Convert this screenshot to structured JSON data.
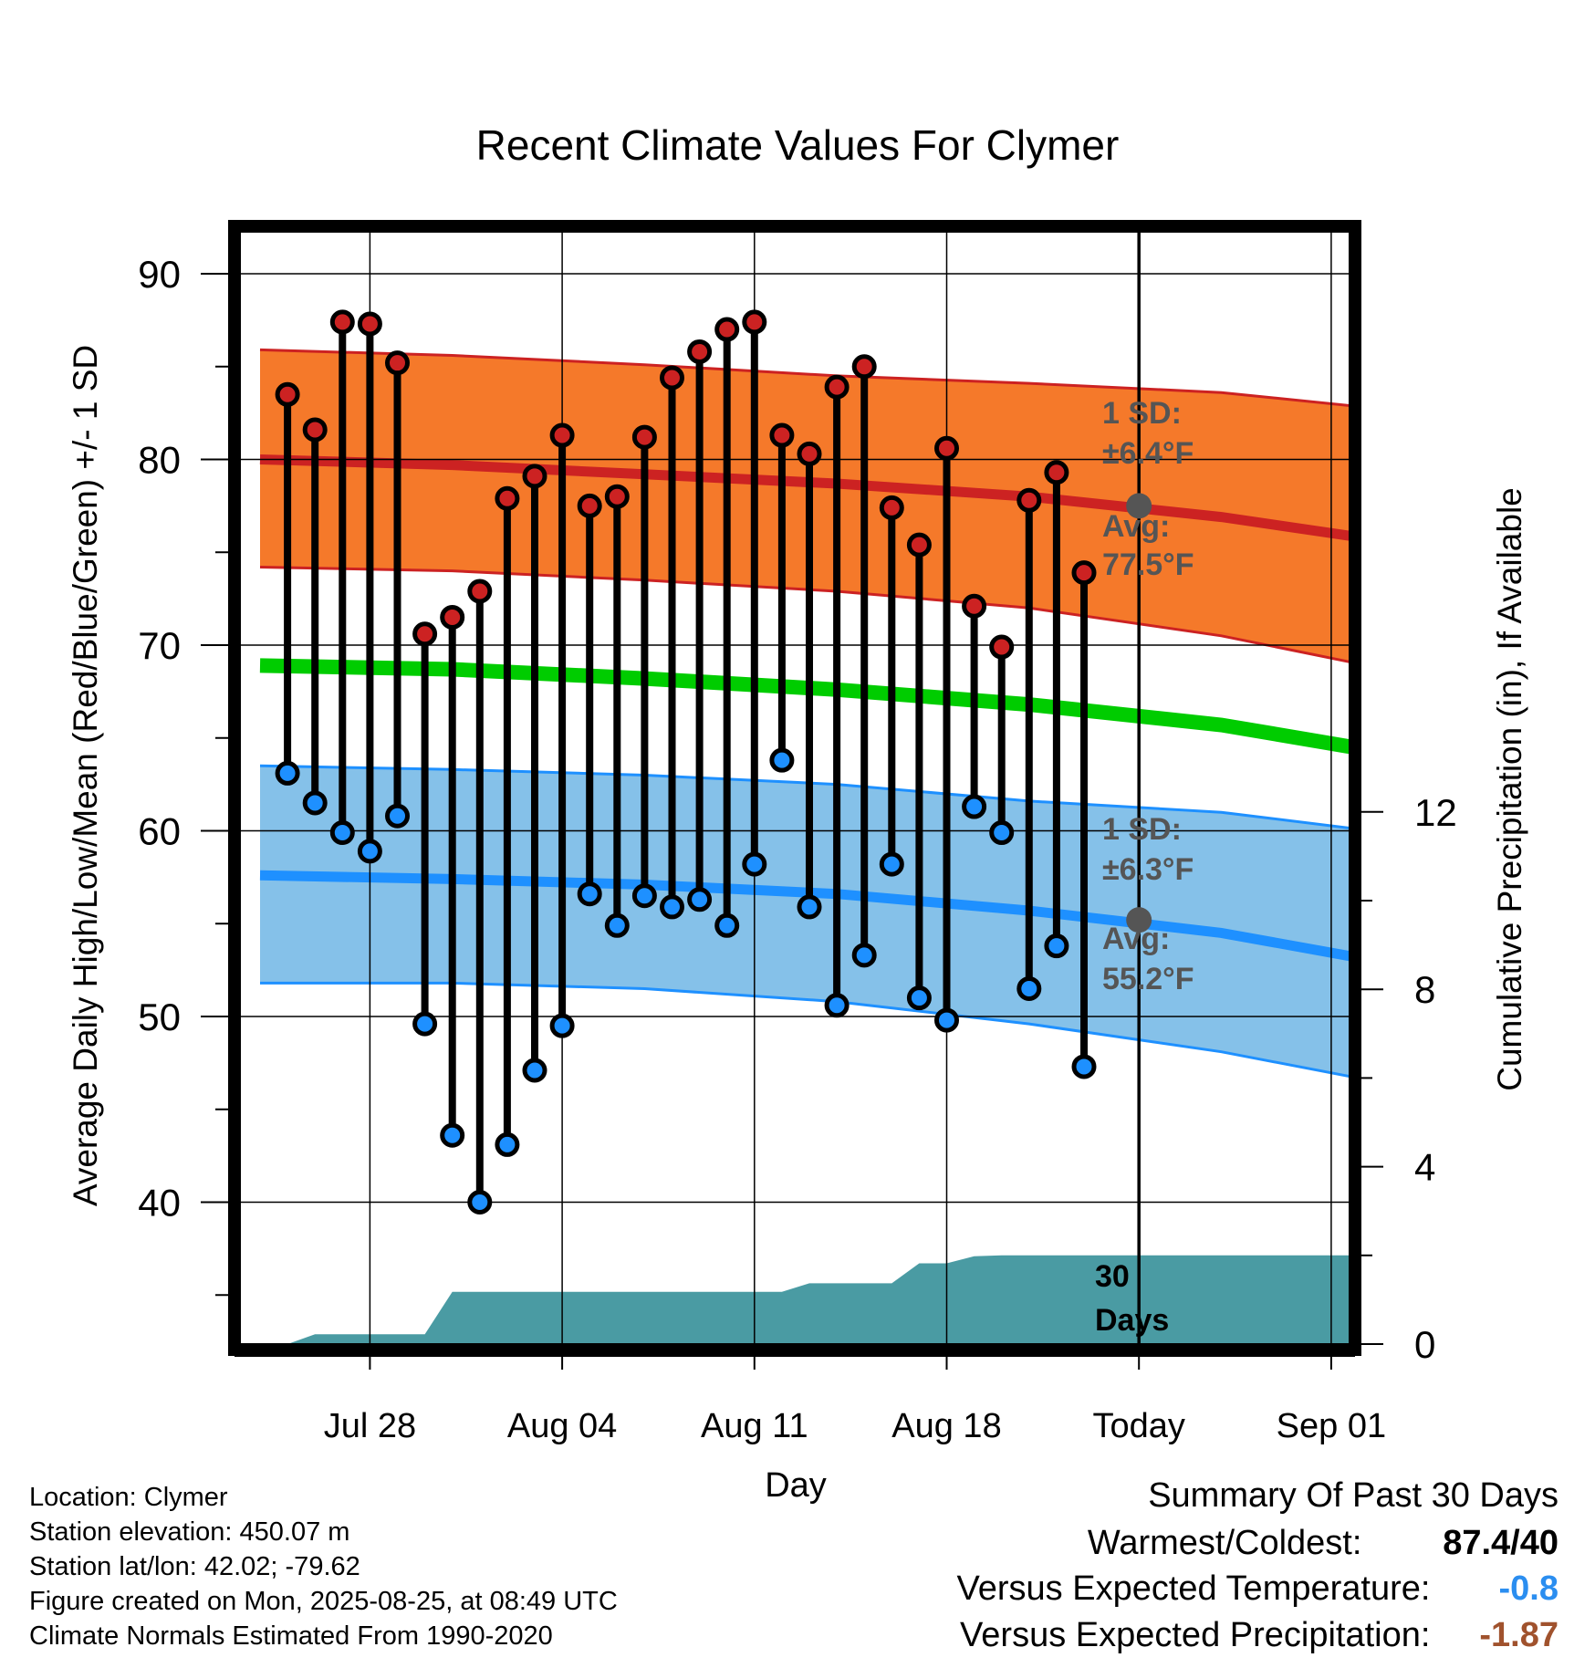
{
  "chart_data": {
    "type": "line",
    "title": "Recent Climate Values For Clymer",
    "xlabel": "Day",
    "ylabel": "Average Daily High/Low/Mean (Red/Blue/Green) +/- 1 SD",
    "y2label": "Cumulative Precipitation (in), If Available",
    "ylim": [
      33,
      93
    ],
    "y2lim": [
      0,
      18
    ],
    "yticks": [
      40,
      50,
      60,
      70,
      80,
      90
    ],
    "y2ticks": [
      0,
      4,
      8,
      12
    ],
    "xlim": [
      "2025-07-24",
      "2025-09-03"
    ],
    "xticks": [
      {
        "date": "2025-07-28",
        "label": "Jul 28"
      },
      {
        "date": "2025-08-04",
        "label": "Aug 04"
      },
      {
        "date": "2025-08-11",
        "label": "Aug 11"
      },
      {
        "date": "2025-08-18",
        "label": "Aug 18"
      },
      {
        "date": "2025-08-25",
        "label": "Today"
      },
      {
        "date": "2025-09-01",
        "label": "Sep 01"
      }
    ],
    "today": "2025-08-25",
    "grid": true,
    "colors": {
      "high": "#cc2222",
      "high_band": "#f5792a",
      "low": "#1e90ff",
      "low_band": "#85c1e9",
      "mean": "#00cc00",
      "precip": "#4a9ba3",
      "avg_marker": "#555555"
    },
    "normals": {
      "x": [
        "2025-07-24",
        "2025-07-31",
        "2025-08-07",
        "2025-08-14",
        "2025-08-21",
        "2025-08-28",
        "2025-09-03"
      ],
      "high_avg": [
        80.0,
        79.7,
        79.2,
        78.7,
        78.0,
        76.9,
        75.6
      ],
      "high_upper": [
        85.9,
        85.6,
        85.1,
        84.5,
        84.1,
        83.6,
        82.7
      ],
      "high_lower": [
        74.2,
        74.0,
        73.5,
        72.9,
        72.0,
        70.5,
        68.7
      ],
      "mean_avg": [
        68.9,
        68.7,
        68.2,
        67.6,
        66.8,
        65.7,
        64.2
      ],
      "low_avg": [
        57.6,
        57.4,
        57.1,
        56.6,
        55.7,
        54.5,
        52.9
      ],
      "low_upper": [
        63.5,
        63.3,
        63.0,
        62.5,
        61.6,
        61.0,
        59.9
      ],
      "low_lower": [
        51.8,
        51.8,
        51.5,
        50.8,
        49.6,
        48.1,
        46.4
      ]
    },
    "observed": {
      "x": [
        "2025-07-25",
        "2025-07-26",
        "2025-07-27",
        "2025-07-28",
        "2025-07-29",
        "2025-07-30",
        "2025-07-31",
        "2025-08-01",
        "2025-08-02",
        "2025-08-03",
        "2025-08-04",
        "2025-08-05",
        "2025-08-06",
        "2025-08-07",
        "2025-08-08",
        "2025-08-09",
        "2025-08-10",
        "2025-08-11",
        "2025-08-12",
        "2025-08-13",
        "2025-08-14",
        "2025-08-15",
        "2025-08-16",
        "2025-08-17",
        "2025-08-18",
        "2025-08-19",
        "2025-08-20",
        "2025-08-21",
        "2025-08-22",
        "2025-08-23",
        "2025-08-24"
      ],
      "high": [
        83.5,
        81.6,
        87.4,
        87.3,
        85.2,
        70.6,
        71.5,
        72.9,
        77.9,
        79.1,
        81.3,
        77.5,
        78.0,
        81.2,
        84.4,
        85.8,
        87.0,
        87.4,
        81.3,
        80.3,
        83.9,
        85.0,
        77.4,
        75.4,
        80.6,
        72.1,
        69.9,
        77.8,
        79.3,
        73.9,
        null
      ],
      "low": [
        63.1,
        61.5,
        59.9,
        58.9,
        60.8,
        49.6,
        43.6,
        40.0,
        43.1,
        47.1,
        49.5,
        56.6,
        54.9,
        56.5,
        55.9,
        56.3,
        54.9,
        58.2,
        63.8,
        55.9,
        50.6,
        53.3,
        58.2,
        51.0,
        49.8,
        61.3,
        59.9,
        51.5,
        53.8,
        47.3,
        null
      ]
    },
    "precip": {
      "x": [
        "2025-07-24",
        "2025-07-25",
        "2025-07-26",
        "2025-07-27",
        "2025-07-28",
        "2025-07-29",
        "2025-07-30",
        "2025-07-31",
        "2025-08-01",
        "2025-08-02",
        "2025-08-03",
        "2025-08-04",
        "2025-08-05",
        "2025-08-06",
        "2025-08-07",
        "2025-08-08",
        "2025-08-09",
        "2025-08-10",
        "2025-08-11",
        "2025-08-12",
        "2025-08-13",
        "2025-08-14",
        "2025-08-15",
        "2025-08-16",
        "2025-08-17",
        "2025-08-18",
        "2025-08-19",
        "2025-08-20",
        "2025-08-21",
        "2025-08-22",
        "2025-08-23",
        "2025-08-24",
        "2025-08-25",
        "2025-09-03"
      ],
      "values": [
        0,
        0,
        0.22,
        0.22,
        0.22,
        0.22,
        0.22,
        1.18,
        1.18,
        1.18,
        1.18,
        1.18,
        1.18,
        1.18,
        1.18,
        1.18,
        1.18,
        1.18,
        1.18,
        1.18,
        1.37,
        1.37,
        1.37,
        1.37,
        1.82,
        1.82,
        1.98,
        2.0,
        2.0,
        2.0,
        2.0,
        2.0,
        2.0,
        2.0
      ]
    },
    "annotations": {
      "high_sd": {
        "line1": "1 SD:",
        "line2": "±6.4°F"
      },
      "high_avg": {
        "line1": "Avg:",
        "line2": "77.5°F",
        "value": 77.5
      },
      "low_sd": {
        "line1": "1 SD:",
        "line2": "±6.3°F"
      },
      "low_avg": {
        "line1": "Avg:",
        "line2": "55.2°F",
        "value": 55.2
      },
      "days": {
        "line1": "30",
        "line2": "Days"
      }
    }
  },
  "meta": {
    "location": "Location: Clymer",
    "elevation": "Station elevation: 450.07 m",
    "latlon": "Station lat/lon: 42.02; -79.62",
    "created": "Figure created on Mon, 2025-08-25, at 08:49 UTC",
    "normals": "Climate Normals Estimated From 1990-2020"
  },
  "summary": {
    "title": "Summary Of Past 30 Days",
    "warmest_label": "Warmest/Coldest:",
    "warmest_value": "87.4/40",
    "temp_label": "Versus Expected Temperature:",
    "temp_value": "-0.8",
    "temp_color": "#2b8ef0",
    "precip_label": "Versus Expected Precipitation:",
    "precip_value": "-1.87",
    "precip_color": "#a0522d"
  }
}
